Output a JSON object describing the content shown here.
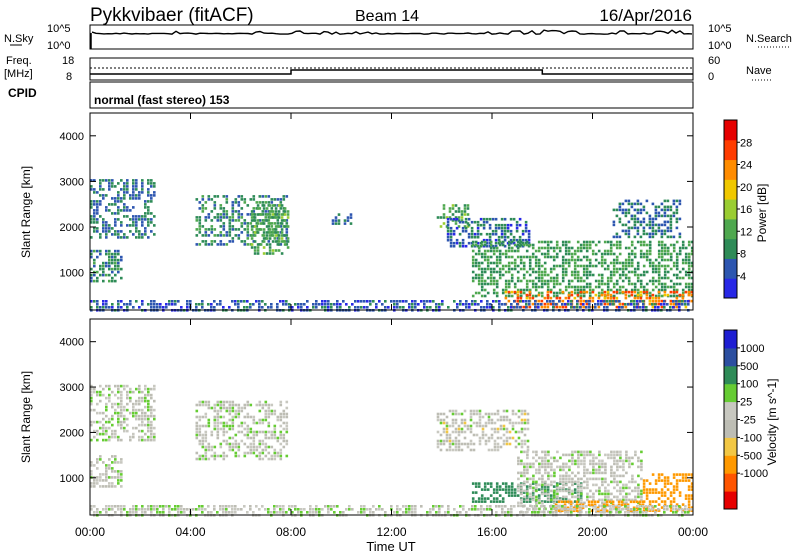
{
  "header": {
    "station": "Pykkvibaer (fitACF)",
    "beam": "Beam 14",
    "date": "16/Apr/2016"
  },
  "noise_panel": {
    "left_label": "N.Sky",
    "right_label": "N.Search",
    "left_ticks": [
      "10^5",
      "10^0"
    ],
    "right_ticks": [
      "10^5",
      "10^0"
    ]
  },
  "freq_panel": {
    "left_label_line1": "Freq.",
    "left_label_line2": "[MHz]",
    "right_label": "Nave",
    "left_ticks": [
      "18",
      "8"
    ],
    "right_ticks": [
      "60",
      "0"
    ],
    "steps": [
      {
        "from_hour": 0,
        "to_hour": 8,
        "level": "low"
      },
      {
        "from_hour": 8,
        "to_hour": 18,
        "level": "high"
      },
      {
        "from_hour": 18,
        "to_hour": 24,
        "level": "low"
      }
    ]
  },
  "cpid_panel": {
    "label": "CPID",
    "mode": "normal (fast stereo) 153"
  },
  "x_axis": {
    "title": "Time UT",
    "ticks": [
      "00:00",
      "04:00",
      "08:00",
      "12:00",
      "16:00",
      "20:00",
      "00:00"
    ]
  },
  "colors": {
    "power_scale": [
      "#2828e6",
      "#2d56b0",
      "#2e8b57",
      "#4fa84f",
      "#9acd32",
      "#f0c800",
      "#ff8c00",
      "#ff3c00",
      "#e60000"
    ],
    "velocity_scale": [
      "#e60000",
      "#ff5500",
      "#ff9900",
      "#f2c744",
      "#bdbdb4",
      "#c8c8c0",
      "#66cc33",
      "#2e8b57",
      "#2c4fa0",
      "#1e1ed2"
    ]
  },
  "chart_data": [
    {
      "type": "heatmap",
      "title": "",
      "xlabel": "Time UT",
      "ylabel": "Slant Range [km]",
      "xlim_hours": [
        0,
        24
      ],
      "ylim": [
        180,
        4500
      ],
      "y_ticks": [
        "4000",
        "3000",
        "2000",
        "1000"
      ],
      "colorbar_label": "Power [dB]",
      "colorbar_ticks": [
        "28",
        "24",
        "20",
        "16",
        "12",
        "8",
        "4"
      ],
      "colorbar_range": [
        0,
        32
      ],
      "regions": [
        {
          "t0": 0.0,
          "t1": 2.6,
          "r0": 1800,
          "r1": 3050,
          "v": 8
        },
        {
          "t0": 0.0,
          "t1": 1.2,
          "r0": 800,
          "r1": 1500,
          "v": 9
        },
        {
          "t0": 4.2,
          "t1": 7.8,
          "r0": 1600,
          "r1": 2700,
          "v": 10
        },
        {
          "t0": 6.4,
          "t1": 7.9,
          "r0": 1400,
          "r1": 2500,
          "v": 13
        },
        {
          "t0": 9.5,
          "t1": 10.4,
          "r0": 2100,
          "r1": 2300,
          "v": 7
        },
        {
          "t0": 13.8,
          "t1": 15.0,
          "r0": 2000,
          "r1": 2500,
          "v": 13
        },
        {
          "t0": 14.2,
          "t1": 17.5,
          "r0": 1600,
          "r1": 2200,
          "v": 7
        },
        {
          "t0": 15.2,
          "t1": 24.0,
          "r0": 500,
          "r1": 1700,
          "v": 12
        },
        {
          "t0": 16.5,
          "t1": 24.0,
          "r0": 250,
          "r1": 600,
          "v": 27
        },
        {
          "t0": 20.8,
          "t1": 23.5,
          "r0": 1800,
          "r1": 2600,
          "v": 8
        },
        {
          "t0": 0.0,
          "t1": 24.0,
          "r0": 200,
          "r1": 400,
          "v": 6
        }
      ]
    },
    {
      "type": "heatmap",
      "title": "",
      "xlabel": "Time UT",
      "ylabel": "Slant Range [km]",
      "xlim_hours": [
        0,
        24
      ],
      "ylim": [
        180,
        4500
      ],
      "y_ticks": [
        "4000",
        "3000",
        "2000",
        "1000"
      ],
      "colorbar_label": "Velocity [m s^-1]",
      "colorbar_ticks": [
        "1000",
        "500",
        "100",
        "25",
        "-25",
        "-100",
        "-500",
        "-1000"
      ],
      "regions": [
        {
          "t0": 0.0,
          "t1": 2.6,
          "r0": 1800,
          "r1": 3050,
          "v": 10
        },
        {
          "t0": 0.0,
          "t1": 1.2,
          "r0": 800,
          "r1": 1500,
          "v": 5
        },
        {
          "t0": 4.2,
          "t1": 7.8,
          "r0": 1400,
          "r1": 2700,
          "v": 5
        },
        {
          "t0": 13.8,
          "t1": 17.5,
          "r0": 1600,
          "r1": 2500,
          "v": 0
        },
        {
          "t0": 15.2,
          "t1": 19.5,
          "r0": 450,
          "r1": 900,
          "v": 150
        },
        {
          "t0": 17.0,
          "t1": 22.0,
          "r0": 250,
          "r1": 1600,
          "v": 5
        },
        {
          "t0": 18.5,
          "t1": 22.0,
          "r0": 250,
          "r1": 500,
          "v": -150
        },
        {
          "t0": 22.0,
          "t1": 24.0,
          "r0": 250,
          "r1": 1100,
          "v": -200
        },
        {
          "t0": 0.0,
          "t1": 24.0,
          "r0": 200,
          "r1": 400,
          "v": 10
        }
      ]
    }
  ]
}
